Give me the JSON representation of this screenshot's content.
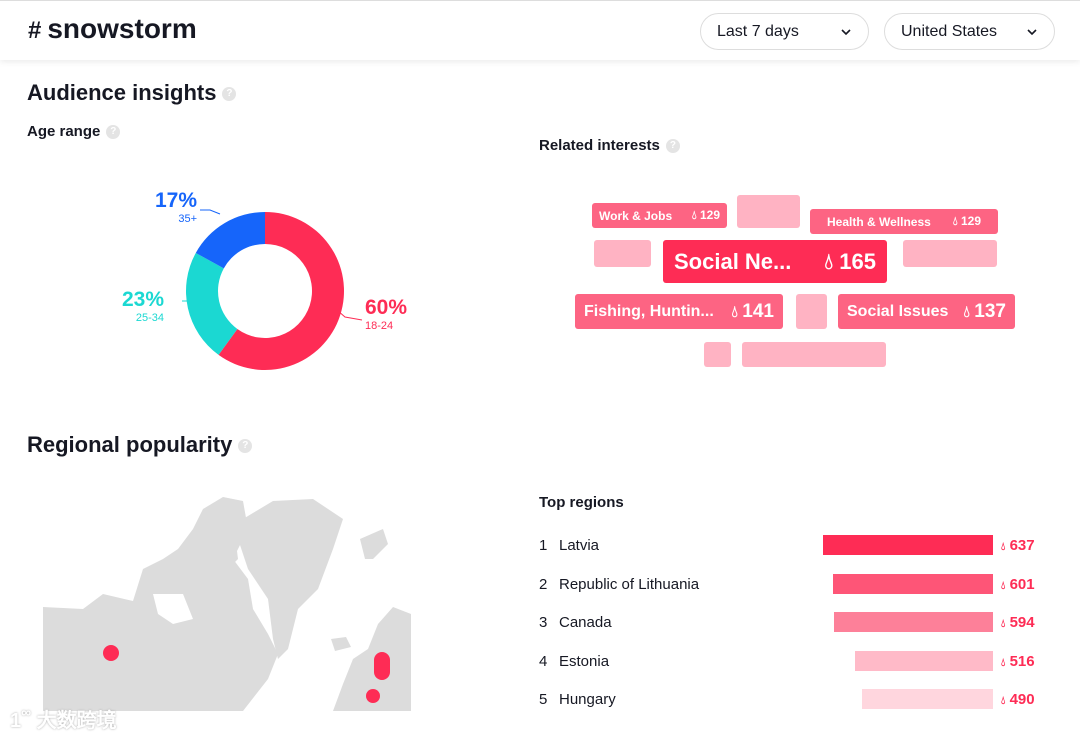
{
  "header": {
    "hash": "#",
    "title": "snowstorm",
    "period": "Last 7 days",
    "country": "United States"
  },
  "audience": {
    "title": "Audience insights",
    "age_title": "Age range"
  },
  "chart_data": {
    "type": "pie",
    "donut": true,
    "categories": [
      "18-24",
      "25-34",
      "35+"
    ],
    "values": [
      60,
      23,
      17
    ],
    "labels": [
      "60%",
      "23%",
      "17%"
    ],
    "colors": [
      "#fe2c55",
      "#1bd8d2",
      "#1665fa"
    ]
  },
  "interests": {
    "title": "Related interests",
    "tags": [
      {
        "label": "Work & Jobs",
        "value": "129"
      },
      {
        "label": "Health & Wellness",
        "value": "129"
      },
      {
        "label": "Social Ne...",
        "value": "165"
      },
      {
        "label": "Fishing, Huntin...",
        "value": "141"
      },
      {
        "label": "Social Issues",
        "value": "137"
      }
    ]
  },
  "regional": {
    "title": "Regional popularity",
    "top_title": "Top regions",
    "regions": [
      {
        "rank": "1",
        "name": "Latvia",
        "value": "637",
        "color": "#fe2c55"
      },
      {
        "rank": "2",
        "name": "Republic of Lithuania",
        "value": "601",
        "color": "#fe5577"
      },
      {
        "rank": "3",
        "name": "Canada",
        "value": "594",
        "color": "#fd8099"
      },
      {
        "rank": "4",
        "name": "Estonia",
        "value": "516",
        "color": "#ffbac8"
      },
      {
        "rank": "5",
        "name": "Hungary",
        "value": "490",
        "color": "#ffd6de"
      }
    ]
  },
  "watermark": "大数跨境"
}
